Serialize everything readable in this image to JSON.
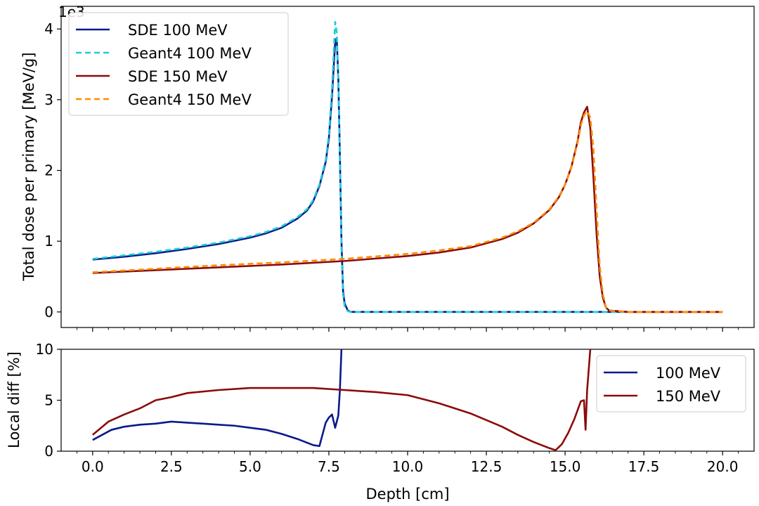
{
  "chart_data": [
    {
      "type": "line",
      "title": "",
      "xlabel": "",
      "ylabel": "Total dose per primary [MeV/g]",
      "y_scale_label": "1e3",
      "xlim": [
        -1.0,
        21.0
      ],
      "ylim": [
        -0.22,
        4.32
      ],
      "yticks": [
        0,
        1,
        2,
        3,
        4
      ],
      "ytick_labels": [
        "0",
        "1",
        "2",
        "3",
        "4"
      ],
      "legend_position": "top-left",
      "series": [
        {
          "name": "SDE 100 MeV",
          "color": "#0a1a8a",
          "style": "solid",
          "x": [
            0,
            1,
            2,
            3,
            4,
            5,
            5.5,
            6,
            6.5,
            6.8,
            7.0,
            7.2,
            7.4,
            7.5,
            7.6,
            7.7,
            7.75,
            7.8,
            7.85,
            7.9,
            7.95,
            8.0,
            8.1,
            8.2,
            9,
            12,
            16,
            20
          ],
          "values": [
            0.74,
            0.78,
            0.83,
            0.89,
            0.96,
            1.05,
            1.11,
            1.19,
            1.32,
            1.43,
            1.56,
            1.78,
            2.12,
            2.45,
            3.05,
            3.82,
            3.87,
            3.3,
            2.2,
            1.0,
            0.3,
            0.12,
            0.02,
            0.0,
            0.0,
            0.0,
            0.0,
            0.0
          ]
        },
        {
          "name": "Geant4 100 MeV",
          "color": "#1ccfd6",
          "style": "dashed",
          "x": [
            0,
            1,
            2,
            3,
            4,
            5,
            5.5,
            6,
            6.5,
            6.8,
            7.0,
            7.2,
            7.4,
            7.5,
            7.6,
            7.7,
            7.75,
            7.8,
            7.85,
            7.9,
            7.95,
            8.0,
            8.1,
            8.2,
            9,
            12,
            16,
            20
          ],
          "values": [
            0.75,
            0.8,
            0.85,
            0.91,
            0.98,
            1.07,
            1.13,
            1.21,
            1.34,
            1.45,
            1.58,
            1.8,
            2.15,
            2.5,
            3.15,
            4.1,
            3.95,
            3.3,
            2.15,
            0.9,
            0.25,
            0.08,
            0.01,
            0.0,
            0.0,
            0.0,
            0.0,
            0.0
          ]
        },
        {
          "name": "SDE 150 MeV",
          "color": "#8b0a0a",
          "style": "solid",
          "x": [
            0,
            2,
            4,
            6,
            8,
            10,
            11,
            12,
            13,
            13.5,
            14,
            14.5,
            14.8,
            15.0,
            15.2,
            15.4,
            15.5,
            15.6,
            15.7,
            15.8,
            15.9,
            16.0,
            16.1,
            16.2,
            16.3,
            16.4,
            17,
            20
          ],
          "values": [
            0.55,
            0.59,
            0.63,
            0.67,
            0.72,
            0.79,
            0.84,
            0.91,
            1.03,
            1.12,
            1.25,
            1.44,
            1.62,
            1.8,
            2.05,
            2.42,
            2.68,
            2.82,
            2.9,
            2.6,
            1.9,
            1.1,
            0.5,
            0.2,
            0.06,
            0.02,
            0.0,
            0.0
          ]
        },
        {
          "name": "Geant4 150 MeV",
          "color": "#ff8c00",
          "style": "dashed",
          "x": [
            0,
            2,
            4,
            6,
            8,
            10,
            11,
            12,
            13,
            13.5,
            14,
            14.5,
            14.8,
            15.0,
            15.2,
            15.4,
            15.5,
            15.6,
            15.7,
            15.8,
            15.9,
            16.0,
            16.1,
            16.2,
            16.3,
            16.4,
            17,
            20
          ],
          "values": [
            0.56,
            0.61,
            0.66,
            0.7,
            0.75,
            0.82,
            0.87,
            0.93,
            1.05,
            1.14,
            1.26,
            1.45,
            1.63,
            1.8,
            2.04,
            2.4,
            2.64,
            2.78,
            2.84,
            2.75,
            2.3,
            1.45,
            0.65,
            0.25,
            0.06,
            0.02,
            0.0,
            0.0
          ]
        }
      ]
    },
    {
      "type": "line",
      "title": "",
      "xlabel": "Depth [cm]",
      "ylabel": "Local diff [%]",
      "xlim": [
        -1.0,
        21.0
      ],
      "ylim": [
        0,
        10
      ],
      "xticks": [
        0,
        2.5,
        5,
        7.5,
        10,
        12.5,
        15,
        17.5,
        20
      ],
      "xtick_labels": [
        "0.0",
        "2.5",
        "5.0",
        "7.5",
        "10.0",
        "12.5",
        "15.0",
        "17.5",
        "20.0"
      ],
      "yticks": [
        0,
        5,
        10
      ],
      "ytick_labels": [
        "0",
        "5",
        "10"
      ],
      "legend_position": "top-right",
      "series": [
        {
          "name": "100 MeV",
          "color": "#0a1a8a",
          "style": "solid",
          "x": [
            0,
            0.3,
            0.6,
            1.0,
            1.5,
            2.0,
            2.5,
            3.0,
            3.5,
            4.0,
            4.5,
            5.0,
            5.5,
            6.0,
            6.5,
            7.0,
            7.2,
            7.4,
            7.5,
            7.6,
            7.7,
            7.8,
            7.85,
            7.9
          ],
          "values": [
            1.1,
            1.6,
            2.1,
            2.4,
            2.6,
            2.7,
            2.9,
            2.8,
            2.7,
            2.6,
            2.5,
            2.3,
            2.1,
            1.7,
            1.2,
            0.6,
            0.5,
            2.8,
            3.3,
            3.6,
            2.3,
            3.5,
            6.0,
            10.0
          ]
        },
        {
          "name": "150 MeV",
          "color": "#8b0a0a",
          "style": "solid",
          "x": [
            0,
            0.5,
            1.0,
            1.5,
            2.0,
            2.5,
            3.0,
            4.0,
            5.0,
            6.0,
            7.0,
            8.0,
            9.0,
            10.0,
            11.0,
            12.0,
            13.0,
            13.5,
            14.0,
            14.5,
            14.7,
            14.9,
            15.1,
            15.3,
            15.5,
            15.6,
            15.65,
            15.7,
            15.8
          ],
          "values": [
            1.6,
            2.9,
            3.6,
            4.2,
            5.0,
            5.3,
            5.7,
            6.0,
            6.2,
            6.2,
            6.2,
            6.0,
            5.8,
            5.5,
            4.7,
            3.7,
            2.4,
            1.6,
            0.9,
            0.3,
            0.1,
            0.7,
            1.8,
            3.2,
            4.9,
            5.0,
            2.1,
            6.0,
            10.0
          ]
        }
      ]
    }
  ]
}
